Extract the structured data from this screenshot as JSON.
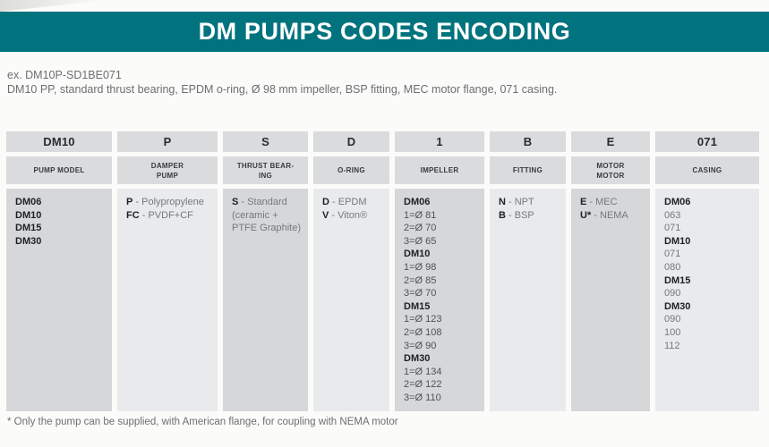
{
  "header": {
    "title": "DM PUMPS CODES ENCODING"
  },
  "example": {
    "code_line": "ex. DM10P-SD1BE071",
    "description": "DM10 PP, standard thrust bearing, EPDM o-ring, Ø 98 mm impeller, BSP fitting, MEC motor flange, 071 casing."
  },
  "footnote": {
    "text": "* Only the pump can be supplied, with American flange, for coupling with NEMA motor"
  },
  "colors": {
    "accent_teal": "#00737e",
    "header_cell_bg": "#d9dbdc",
    "cell_dark_bg": "#d5d7d9",
    "cell_light_bg": "#e9eaeb",
    "text_dark": "#1f2022",
    "text_gray": "#77787b"
  },
  "table": {
    "columns": [
      {
        "code": "DM10",
        "name_lines": [
          "PUMP MODEL"
        ],
        "shade": "dark",
        "lines": [
          {
            "b": "DM06"
          },
          {
            "b": "DM10"
          },
          {
            "b": "DM15"
          },
          {
            "b": "DM30"
          }
        ]
      },
      {
        "code": "P",
        "name_lines": [
          "DAMPER",
          "PUMP"
        ],
        "shade": "light",
        "lines": [
          {
            "b": "P",
            "t": " - Polypropylene"
          },
          {
            "b": "FC",
            "t": " - PVDF+CF"
          }
        ]
      },
      {
        "code": "S",
        "name_lines": [
          "THRUST BEAR-",
          "ING"
        ],
        "shade": "dark",
        "lines": [
          {
            "b": "S",
            "t": " - Standard"
          },
          {
            "t": "(ceramic +"
          },
          {
            "t": "PTFE Graphite)"
          }
        ]
      },
      {
        "code": "D",
        "name_lines": [
          "O-RING"
        ],
        "shade": "light",
        "lines": [
          {
            "b": "D",
            "t": " - EPDM"
          },
          {
            "b": "V",
            "t": " - Viton®"
          }
        ]
      },
      {
        "code": "1",
        "name_lines": [
          "IMPELLER"
        ],
        "shade": "dark",
        "lines": [
          {
            "b": "DM06"
          },
          {
            "m": "1=Ø 81"
          },
          {
            "m": "2=Ø 70"
          },
          {
            "m": "3=Ø 65"
          },
          {
            "b": "DM10"
          },
          {
            "m": "1=Ø 98"
          },
          {
            "m": "2=Ø 85"
          },
          {
            "m": "3=Ø 70"
          },
          {
            "b": "DM15"
          },
          {
            "m": "1=Ø 123"
          },
          {
            "m": "2=Ø 108"
          },
          {
            "m": "3=Ø 90"
          },
          {
            "b": "DM30"
          },
          {
            "m": "1=Ø 134"
          },
          {
            "m": "2=Ø 122"
          },
          {
            "m": "3=Ø 110"
          }
        ]
      },
      {
        "code": "B",
        "name_lines": [
          "FITTING"
        ],
        "shade": "light",
        "lines": [
          {
            "b": "N",
            "t": " - NPT"
          },
          {
            "b": "B",
            "t": " - BSP"
          }
        ]
      },
      {
        "code": "E",
        "name_lines": [
          "MOTOR",
          "MOTOR"
        ],
        "shade": "dark",
        "lines": [
          {
            "b": "E",
            "t": " - MEC"
          },
          {
            "b": "U*",
            "t": " - NEMA"
          }
        ]
      },
      {
        "code": "071",
        "name_lines": [
          "CASING"
        ],
        "shade": "light",
        "lines": [
          {
            "b": "DM06"
          },
          {
            "t": "063"
          },
          {
            "t": "071"
          },
          {
            "b": "DM10"
          },
          {
            "t": "071"
          },
          {
            "t": "080"
          },
          {
            "b": "DM15"
          },
          {
            "t": "090"
          },
          {
            "b": "DM30"
          },
          {
            "t": "090"
          },
          {
            "t": "100"
          },
          {
            "t": "112"
          }
        ]
      }
    ]
  }
}
